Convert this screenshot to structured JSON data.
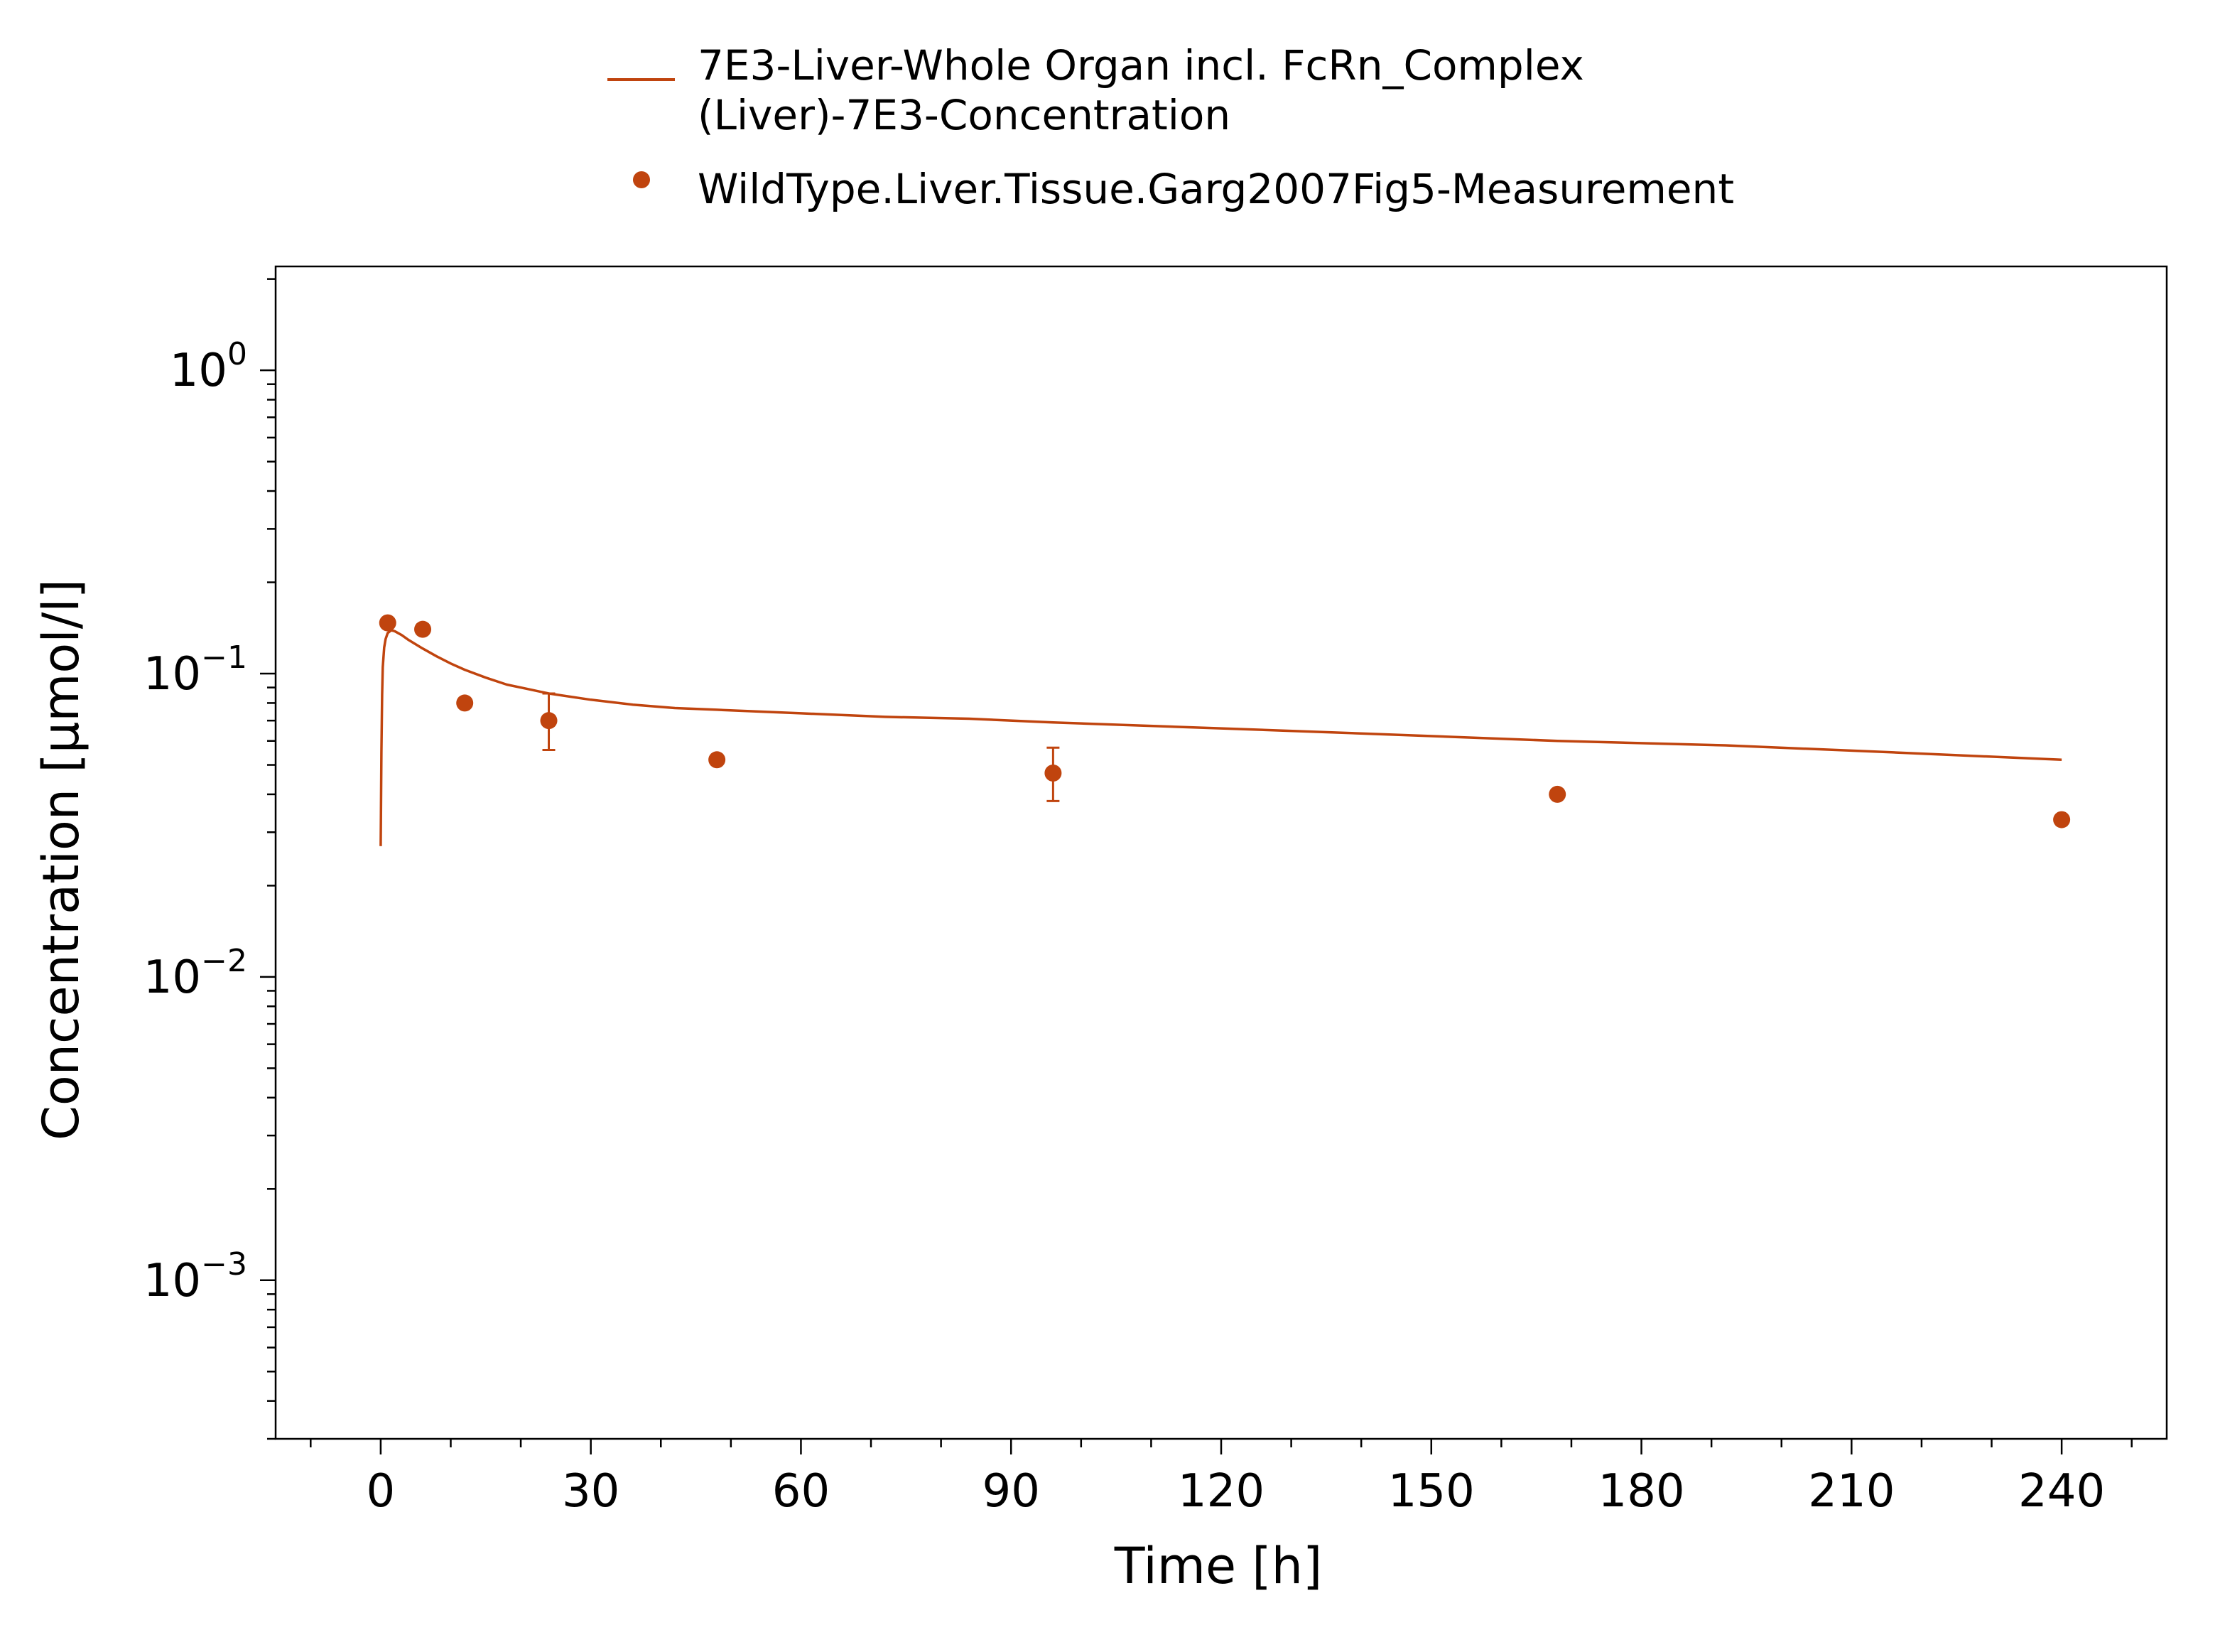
{
  "chart_data": {
    "type": "line",
    "xlabel": "Time [h]",
    "ylabel": "Concentration [µmol/l]",
    "xlim": [
      -15,
      255
    ],
    "ylim": [
      0.0003,
      2.2
    ],
    "yscale": "log",
    "xticks": [
      0,
      30,
      60,
      90,
      120,
      150,
      180,
      210,
      240
    ],
    "yticks": [
      {
        "value": 1,
        "base": "10",
        "exp": "0"
      },
      {
        "value": 0.1,
        "base": "10",
        "exp": "−1"
      },
      {
        "value": 0.01,
        "base": "10",
        "exp": "−2"
      },
      {
        "value": 0.001,
        "base": "10",
        "exp": "−3"
      }
    ],
    "grid": false,
    "legend_position": "top",
    "series": [
      {
        "name": "7E3-Liver-Whole Organ incl. FcRn_Complex (Liver)-7E3-Concentration",
        "legend_lines": [
          "7E3-Liver-Whole Organ incl. FcRn_Complex",
          "(Liver)-7E3-Concentration"
        ],
        "kind": "line",
        "color": "#c0440e",
        "x": [
          0,
          0.1,
          0.2,
          0.3,
          0.5,
          0.7,
          1.0,
          1.5,
          2,
          3,
          4,
          6,
          8,
          10,
          12,
          15,
          18,
          21,
          24,
          30,
          36,
          42,
          48,
          60,
          72,
          84,
          96,
          120,
          144,
          168,
          192,
          216,
          240
        ],
        "y": [
          0.027,
          0.055,
          0.085,
          0.105,
          0.122,
          0.13,
          0.136,
          0.139,
          0.138,
          0.134,
          0.129,
          0.121,
          0.114,
          0.108,
          0.103,
          0.097,
          0.092,
          0.089,
          0.086,
          0.082,
          0.079,
          0.077,
          0.076,
          0.074,
          0.072,
          0.071,
          0.069,
          0.066,
          0.063,
          0.06,
          0.058,
          0.055,
          0.052
        ]
      },
      {
        "name": "WildType.Liver.Tissue.Garg2007Fig5-Measurement",
        "legend_lines": [
          "WildType.Liver.Tissue.Garg2007Fig5-Measurement"
        ],
        "kind": "scatter",
        "color": "#c0440e",
        "points": [
          {
            "x": 1,
            "y": 0.147
          },
          {
            "x": 6,
            "y": 0.14
          },
          {
            "x": 12,
            "y": 0.08
          },
          {
            "x": 24,
            "y": 0.07,
            "ylow": 0.056,
            "yhigh": 0.086
          },
          {
            "x": 48,
            "y": 0.052
          },
          {
            "x": 96,
            "y": 0.047,
            "ylow": 0.038,
            "yhigh": 0.057
          },
          {
            "x": 168,
            "y": 0.04
          },
          {
            "x": 240,
            "y": 0.033
          }
        ]
      }
    ]
  }
}
